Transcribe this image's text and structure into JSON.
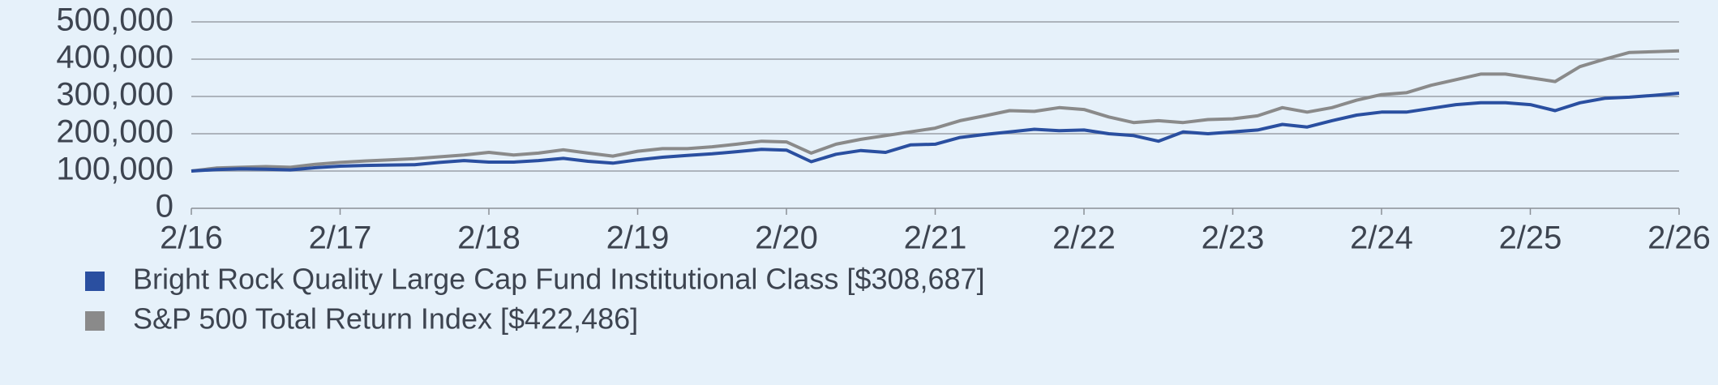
{
  "chart_data": {
    "type": "line",
    "categories": [
      "2/16",
      null,
      null,
      null,
      null,
      null,
      "2/17",
      null,
      null,
      null,
      null,
      null,
      "2/18",
      null,
      null,
      null,
      null,
      null,
      "2/19",
      null,
      null,
      null,
      null,
      null,
      "2/20",
      null,
      null,
      null,
      null,
      null,
      "2/21",
      null,
      null,
      null,
      null,
      null,
      "2/22",
      null,
      null,
      null,
      null,
      null,
      "2/23",
      null,
      null,
      null,
      null,
      null,
      "2/24",
      null,
      null,
      null,
      null,
      null,
      "2/25",
      null,
      null,
      null,
      null,
      null,
      "2/26"
    ],
    "series": [
      {
        "name": "Bright Rock Quality Large Cap Fund Institutional Class [$308,687]",
        "color": "#2a4fa0",
        "values": [
          100000,
          104000,
          106000,
          105000,
          103000,
          109000,
          113000,
          115000,
          116000,
          117000,
          123000,
          128000,
          124000,
          124000,
          128000,
          134000,
          126000,
          121000,
          130000,
          137000,
          142000,
          146000,
          152000,
          158000,
          156000,
          125000,
          145000,
          155000,
          150000,
          170000,
          172000,
          190000,
          198000,
          205000,
          212000,
          208000,
          210000,
          200000,
          195000,
          180000,
          205000,
          200000,
          205000,
          210000,
          225000,
          218000,
          235000,
          250000,
          258000,
          258000,
          268000,
          278000,
          283000,
          283000,
          278000,
          262000,
          283000,
          295000,
          298000,
          303000,
          308687
        ]
      },
      {
        "name": "S&P 500 Total Return Index [$422,486]",
        "color": "#8a8a8a",
        "values": [
          100000,
          108000,
          110000,
          112000,
          110000,
          118000,
          123000,
          127000,
          130000,
          133000,
          138000,
          143000,
          150000,
          143000,
          148000,
          157000,
          148000,
          140000,
          153000,
          160000,
          160000,
          165000,
          172000,
          180000,
          178000,
          148000,
          172000,
          185000,
          195000,
          205000,
          215000,
          235000,
          248000,
          262000,
          260000,
          270000,
          265000,
          245000,
          230000,
          235000,
          230000,
          238000,
          240000,
          248000,
          270000,
          258000,
          270000,
          290000,
          305000,
          310000,
          330000,
          345000,
          360000,
          360000,
          350000,
          340000,
          380000,
          400000,
          418000,
          420000,
          422486
        ]
      }
    ],
    "ylim": [
      0,
      500000
    ],
    "yticks": [
      0,
      {
        "value": 100000,
        "label": "100,000"
      },
      {
        "value": 200000,
        "label": "200,000"
      },
      {
        "value": 300000,
        "label": "300,000"
      },
      {
        "value": 400000,
        "label": "400,000"
      },
      {
        "value": 500000,
        "label": "500,000"
      }
    ],
    "grid": true
  }
}
